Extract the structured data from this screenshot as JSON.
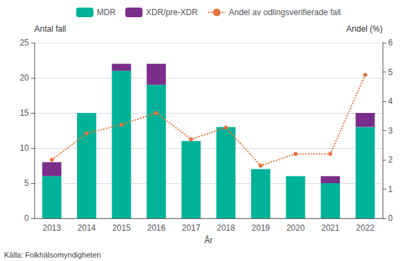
{
  "chart_data": {
    "type": "bar",
    "xlabel": "År",
    "ylabel": "Antal fall",
    "y2label": "Andel (%)",
    "annotations": [
      "Källa: Folkhälsomyndigheten"
    ],
    "categories": [
      "2013",
      "2014",
      "2015",
      "2016",
      "2017",
      "2018",
      "2019",
      "2020",
      "2021",
      "2022"
    ],
    "series": [
      {
        "name": "MDR",
        "color": "#00B398",
        "values": [
          6,
          15,
          21,
          19,
          11,
          13,
          7,
          6,
          5,
          13
        ]
      },
      {
        "name": "XDR/pre-XDR",
        "color": "#7B2D8B",
        "values": [
          2,
          0,
          1,
          3,
          0,
          0,
          0,
          0,
          1,
          2
        ]
      },
      {
        "name": "Andel av odlingsverifierade fall",
        "type": "line",
        "axis": "y2",
        "color": "#E8733A",
        "line_style": "dotted",
        "marker": "circle",
        "values": [
          2.0,
          2.9,
          3.2,
          3.6,
          2.7,
          3.1,
          1.8,
          2.2,
          2.2,
          4.9
        ]
      }
    ],
    "stacked": true,
    "ylim": [
      0,
      25
    ],
    "yticks": [
      0,
      5,
      10,
      15,
      20,
      25
    ],
    "y2lim": [
      0,
      6
    ],
    "y2ticks": [
      0,
      1,
      2,
      3,
      4,
      5,
      6
    ],
    "grid": true,
    "legend": "top"
  }
}
